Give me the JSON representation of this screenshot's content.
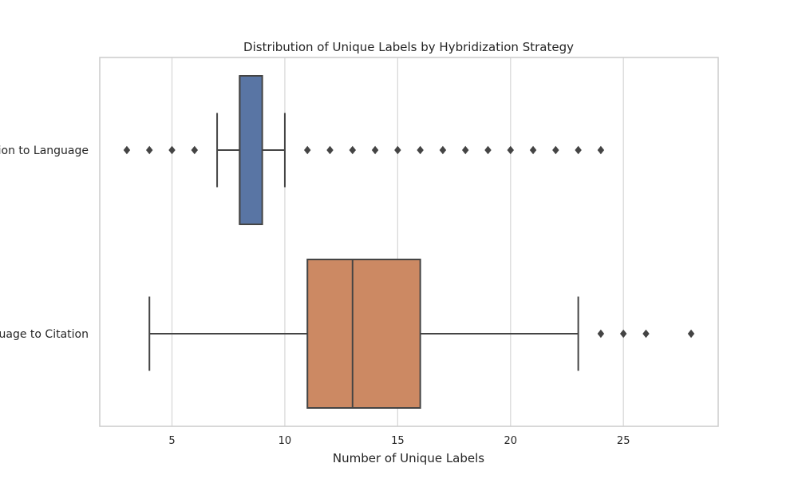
{
  "chart_data": {
    "type": "boxplot",
    "orientation": "horizontal",
    "title": "Distribution of Unique Labels by Hybridization Strategy",
    "xlabel": "Number of Unique Labels",
    "ylabel": "",
    "xlim": [
      1.8,
      29.2
    ],
    "xticks": [
      5,
      10,
      15,
      20,
      25
    ],
    "grid": "vertical",
    "categories": [
      "Citation to Language",
      "Language to Citation"
    ],
    "category_labels_visible": [
      "tion to Language",
      "guage to Citation"
    ],
    "boxes": [
      {
        "category": "Citation to Language",
        "color": "#5975a4",
        "whisker_low": 7,
        "q1": 8,
        "median": 8,
        "q3": 9,
        "whisker_high": 10,
        "outliers": [
          3,
          4,
          5,
          6,
          11,
          12,
          13,
          14,
          15,
          16,
          17,
          18,
          19,
          20,
          21,
          22,
          23,
          24
        ]
      },
      {
        "category": "Language to Citation",
        "color": "#cc8963",
        "whisker_low": 4,
        "q1": 11,
        "median": 13,
        "q3": 16,
        "whisker_high": 23,
        "outliers": [
          24,
          25,
          26,
          28
        ]
      }
    ],
    "colors": {
      "grid": "#d9d9d9",
      "frame": "#cccccc",
      "lines": "#444444"
    }
  }
}
